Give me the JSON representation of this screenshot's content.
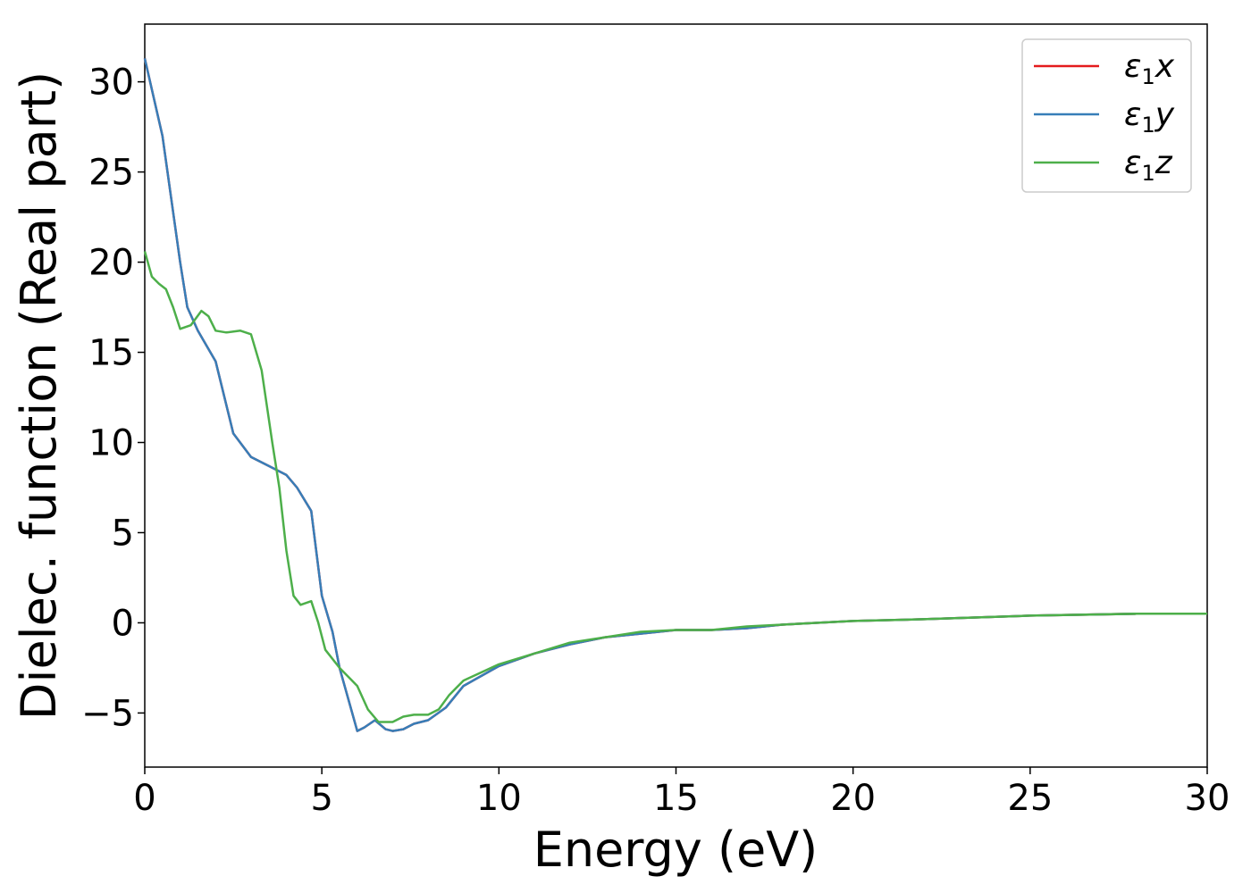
{
  "chart_data": {
    "type": "line",
    "xlabel": "Energy (eV)",
    "ylabel": "Dielec. function (Real part)",
    "xlim": [
      0,
      30
    ],
    "ylim": [
      -8,
      33.2
    ],
    "xticks": [
      0,
      5,
      10,
      15,
      20,
      25,
      30
    ],
    "yticks": [
      -5,
      0,
      5,
      10,
      15,
      20,
      25,
      30
    ],
    "xtick_labels": [
      "0",
      "5",
      "10",
      "15",
      "20",
      "25",
      "30"
    ],
    "ytick_labels": [
      "−5",
      "0",
      "5",
      "10",
      "15",
      "20",
      "25",
      "30"
    ],
    "grid": false,
    "legend_position": "top-right",
    "series": [
      {
        "name": "ε₁x",
        "legend_base": "ε",
        "legend_sub": "1",
        "legend_var": "x",
        "color": "#e41a1c",
        "x": [
          0,
          0.5,
          1,
          1.2,
          1.5,
          2,
          2.5,
          3,
          3.5,
          4,
          4.3,
          4.7,
          5,
          5.3,
          5.5,
          6,
          6.2,
          6.5,
          6.8,
          7,
          7.3,
          7.6,
          8,
          8.5,
          9,
          10,
          11,
          12,
          13,
          14,
          15,
          16,
          17,
          18,
          20,
          22,
          25,
          28,
          30
        ],
        "y": [
          31.3,
          27,
          20,
          17.5,
          16.2,
          14.5,
          10.5,
          9.2,
          8.7,
          8.2,
          7.5,
          6.2,
          1.5,
          -0.5,
          -2.5,
          -6.0,
          -5.8,
          -5.4,
          -5.9,
          -6.0,
          -5.9,
          -5.6,
          -5.4,
          -4.7,
          -3.5,
          -2.4,
          -1.7,
          -1.2,
          -0.8,
          -0.6,
          -0.4,
          -0.4,
          -0.3,
          -0.1,
          0.1,
          0.2,
          0.4,
          0.5,
          0.5
        ]
      },
      {
        "name": "ε₁y",
        "legend_base": "ε",
        "legend_sub": "1",
        "legend_var": "y",
        "color": "#377eb8",
        "x": [
          0,
          0.5,
          1,
          1.2,
          1.5,
          2,
          2.5,
          3,
          3.5,
          4,
          4.3,
          4.7,
          5,
          5.3,
          5.5,
          6,
          6.2,
          6.5,
          6.8,
          7,
          7.3,
          7.6,
          8,
          8.5,
          9,
          10,
          11,
          12,
          13,
          14,
          15,
          16,
          17,
          18,
          20,
          22,
          25,
          28,
          30
        ],
        "y": [
          31.3,
          27,
          20,
          17.5,
          16.2,
          14.5,
          10.5,
          9.2,
          8.7,
          8.2,
          7.5,
          6.2,
          1.5,
          -0.5,
          -2.5,
          -6.0,
          -5.8,
          -5.4,
          -5.9,
          -6.0,
          -5.9,
          -5.6,
          -5.4,
          -4.7,
          -3.5,
          -2.4,
          -1.7,
          -1.2,
          -0.8,
          -0.6,
          -0.4,
          -0.4,
          -0.3,
          -0.1,
          0.1,
          0.2,
          0.4,
          0.5,
          0.5
        ]
      },
      {
        "name": "ε₁z",
        "legend_base": "ε",
        "legend_sub": "1",
        "legend_var": "z",
        "color": "#4daf4a",
        "x": [
          0,
          0.2,
          0.4,
          0.6,
          0.8,
          1,
          1.3,
          1.6,
          1.8,
          2,
          2.3,
          2.7,
          3,
          3.3,
          3.6,
          3.8,
          4,
          4.2,
          4.4,
          4.7,
          4.9,
          5.1,
          5.5,
          6,
          6.3,
          6.6,
          7,
          7.3,
          7.6,
          8,
          8.3,
          8.6,
          9,
          10,
          11,
          12,
          13,
          14,
          15,
          16,
          17,
          18,
          20,
          22,
          25,
          28,
          30
        ],
        "y": [
          20.6,
          19.2,
          18.8,
          18.5,
          17.5,
          16.3,
          16.5,
          17.3,
          17.0,
          16.2,
          16.1,
          16.2,
          16.0,
          14.0,
          10.0,
          7.5,
          4.0,
          1.5,
          1.0,
          1.2,
          0.0,
          -1.5,
          -2.5,
          -3.5,
          -4.8,
          -5.5,
          -5.5,
          -5.2,
          -5.1,
          -5.1,
          -4.8,
          -4.0,
          -3.2,
          -2.3,
          -1.7,
          -1.1,
          -0.8,
          -0.5,
          -0.4,
          -0.4,
          -0.2,
          -0.1,
          0.1,
          0.2,
          0.4,
          0.5,
          0.5
        ]
      }
    ]
  }
}
